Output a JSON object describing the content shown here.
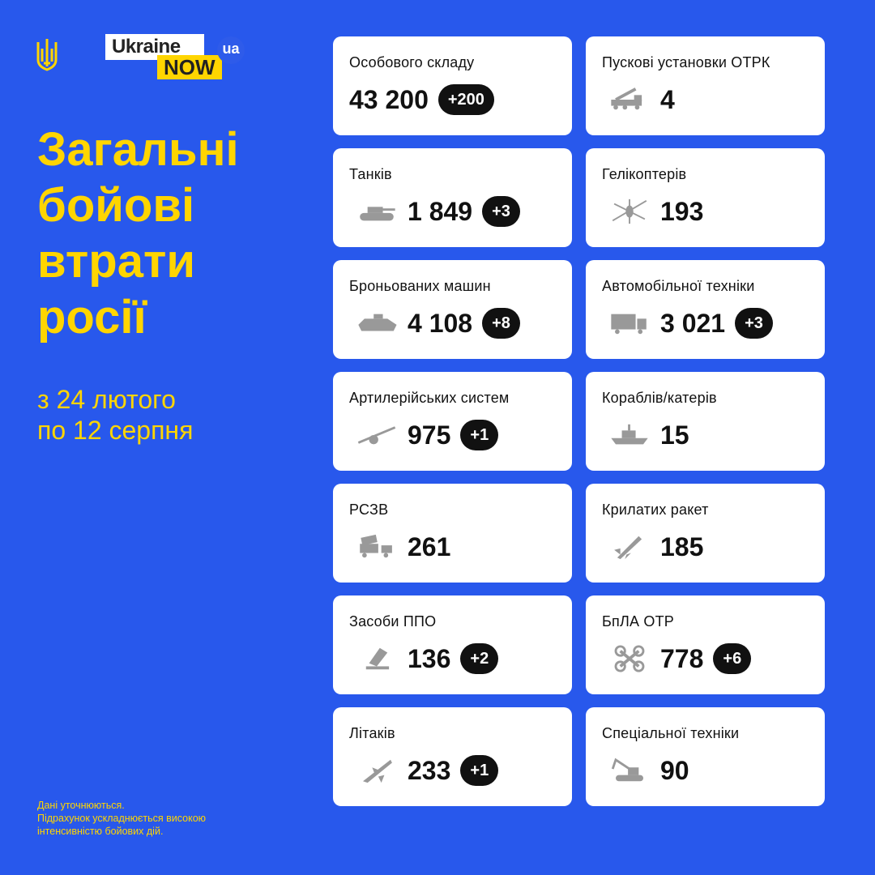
{
  "logo": {
    "ukraine": "Ukraine",
    "now": "NOW",
    "ua": "ua"
  },
  "colors": {
    "background": "#2858EC",
    "accent": "#FFD500",
    "card": "#FFFFFF",
    "badge": "#111111",
    "icon": "#9A9A9A"
  },
  "title": [
    "Загальні",
    "бойові",
    "втрати",
    "росії"
  ],
  "subtitle": [
    "з 24 лютого",
    "по 12 серпня"
  ],
  "note": [
    "Дані уточнюються.",
    "Підрахунок ускладнюється високою",
    "інтенсивністю бойових дій."
  ],
  "cards": [
    {
      "label": "Особового складу",
      "value": "43 200",
      "delta": "+200",
      "icon": ""
    },
    {
      "label": "Пускові установки ОТРК",
      "value": "4",
      "delta": "",
      "icon": "missile-launcher-icon"
    },
    {
      "label": "Танків",
      "value": "1 849",
      "delta": "+3",
      "icon": "tank-icon"
    },
    {
      "label": "Гелікоптерів",
      "value": "193",
      "delta": "",
      "icon": "helicopter-icon"
    },
    {
      "label": "Броньованих машин",
      "value": "4 108",
      "delta": "+8",
      "icon": "armored-vehicle-icon"
    },
    {
      "label": "Автомобільної техніки",
      "value": "3 021",
      "delta": "+3",
      "icon": "truck-icon"
    },
    {
      "label": "Артилерійських систем",
      "value": "975",
      "delta": "+1",
      "icon": "artillery-icon"
    },
    {
      "label": "Кораблів/катерів",
      "value": "15",
      "delta": "",
      "icon": "ship-icon"
    },
    {
      "label": "РСЗВ",
      "value": "261",
      "delta": "",
      "icon": "mlrs-icon"
    },
    {
      "label": "Крилатих ракет",
      "value": "185",
      "delta": "",
      "icon": "cruise-missile-icon"
    },
    {
      "label": "Засоби ППО",
      "value": "136",
      "delta": "+2",
      "icon": "air-defense-icon"
    },
    {
      "label": "БпЛА ОТР",
      "value": "778",
      "delta": "+6",
      "icon": "drone-icon"
    },
    {
      "label": "Літаків",
      "value": "233",
      "delta": "+1",
      "icon": "aircraft-icon"
    },
    {
      "label": "Спеціальної техніки",
      "value": "90",
      "delta": "",
      "icon": "special-equipment-icon"
    }
  ]
}
